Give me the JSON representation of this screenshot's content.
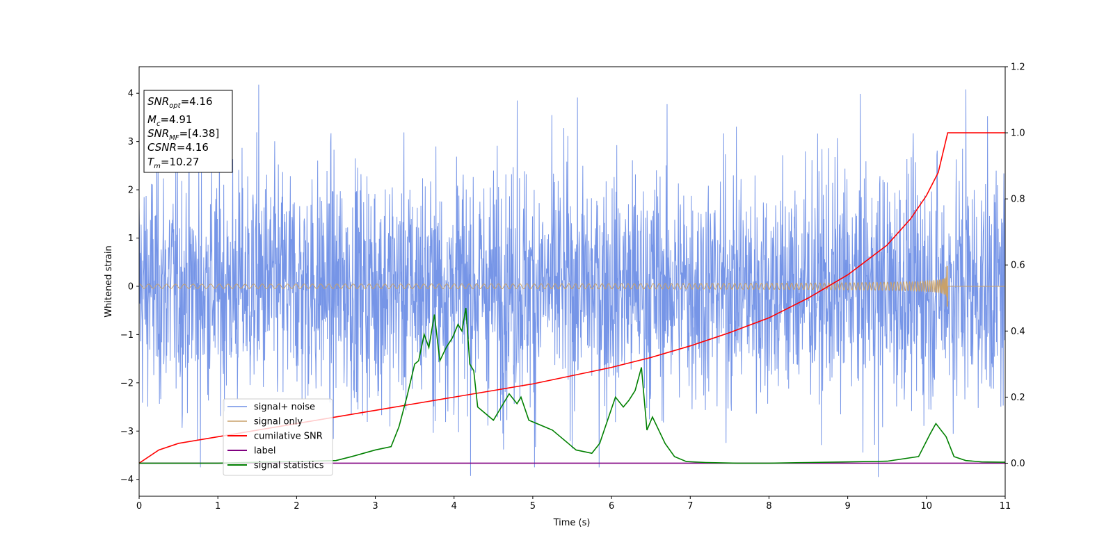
{
  "chart_data": {
    "type": "line",
    "xlabel": "Time (s)",
    "ylabel": "Whitened strain",
    "xlim": [
      0,
      11
    ],
    "ylim": [
      -4.35,
      4.55
    ],
    "y2lim": [
      -0.1,
      1.2
    ],
    "x_ticks": [
      0,
      1,
      2,
      3,
      4,
      5,
      6,
      7,
      8,
      9,
      10,
      11
    ],
    "y_ticks": [
      -4,
      -3,
      -2,
      -1,
      0,
      1,
      2,
      3,
      4
    ],
    "y2_ticks": [
      0.0,
      0.2,
      0.4,
      0.6,
      0.8,
      1.0,
      1.2
    ],
    "grid": false,
    "legend_position": "lower-left",
    "colors": {
      "noise": "#6f8fe6",
      "signal": "#c8a16a",
      "cumulative": "#ff0000",
      "label": "#800080",
      "statistics": "#008000"
    },
    "annotation_box": {
      "position": "top-left",
      "lines": [
        {
          "var": "SNR",
          "sub": "opt",
          "value": "=4.16"
        },
        {
          "var": "M",
          "sub": "c",
          "value": "=4.91"
        },
        {
          "var": "SNR",
          "sub": "MF",
          "value": "=[4.38]"
        },
        {
          "var": "CSNR",
          "sub": "",
          "value": "=4.16"
        },
        {
          "var": "T",
          "sub": "m",
          "value": "=10.27"
        }
      ]
    },
    "series": [
      {
        "name": "signal+ noise",
        "axis": "left",
        "style": "noise band",
        "x_range": [
          0,
          11
        ],
        "typical_envelope": [
          -1.7,
          2.3
        ],
        "extremes": [
          -3.95,
          4.18
        ],
        "spikes": [
          {
            "x": 1.52,
            "y": 4.18
          },
          {
            "x": 10.5,
            "y": 4.08
          },
          {
            "x": 4.8,
            "y": 3.85
          },
          {
            "x": 0.78,
            "y": -3.75
          },
          {
            "x": 5.02,
            "y": -3.75
          },
          {
            "x": 9.39,
            "y": -3.95
          }
        ]
      },
      {
        "name": "signal only",
        "axis": "left",
        "style": "chirp",
        "x_range": [
          0,
          11
        ],
        "merger_time": 10.27,
        "peak_amplitude": 0.42
      },
      {
        "name": "cumilative SNR",
        "axis": "right",
        "x": [
          0,
          0.25,
          0.5,
          1,
          1.5,
          2,
          2.5,
          3,
          3.5,
          4,
          4.5,
          5,
          5.5,
          6,
          6.5,
          7,
          7.5,
          8,
          8.5,
          9,
          9.5,
          9.8,
          10,
          10.15,
          10.27,
          11
        ],
        "values": [
          0.0,
          0.04,
          0.06,
          0.08,
          0.1,
          0.12,
          0.14,
          0.16,
          0.18,
          0.2,
          0.22,
          0.24,
          0.265,
          0.29,
          0.32,
          0.355,
          0.395,
          0.44,
          0.5,
          0.57,
          0.66,
          0.74,
          0.81,
          0.88,
          1.0,
          1.0
        ]
      },
      {
        "name": "label",
        "axis": "right",
        "x": [
          0,
          11
        ],
        "values": [
          0,
          0
        ]
      },
      {
        "name": "signal statistics",
        "axis": "right",
        "x": [
          0,
          0.5,
          1,
          1.5,
          2,
          2.5,
          2.7,
          2.85,
          3,
          3.1,
          3.2,
          3.3,
          3.4,
          3.5,
          3.55,
          3.62,
          3.68,
          3.75,
          3.82,
          3.9,
          3.98,
          4.05,
          4.1,
          4.15,
          4.2,
          4.25,
          4.3,
          4.35,
          4.5,
          4.6,
          4.7,
          4.8,
          4.85,
          4.95,
          5.05,
          5.15,
          5.25,
          5.35,
          5.45,
          5.55,
          5.65,
          5.75,
          5.85,
          5.95,
          6.05,
          6.15,
          6.22,
          6.3,
          6.38,
          6.45,
          6.52,
          6.6,
          6.68,
          6.8,
          6.95,
          7.2,
          7.6,
          8.0,
          8.5,
          9.0,
          9.5,
          9.9,
          10.05,
          10.12,
          10.25,
          10.35,
          10.5,
          10.7,
          11
        ],
        "values": [
          0.0,
          0.0,
          0.0,
          0.003,
          0.005,
          0.008,
          0.02,
          0.03,
          0.04,
          0.045,
          0.05,
          0.11,
          0.2,
          0.3,
          0.31,
          0.39,
          0.35,
          0.45,
          0.31,
          0.35,
          0.38,
          0.42,
          0.4,
          0.47,
          0.3,
          0.28,
          0.17,
          0.16,
          0.13,
          0.17,
          0.21,
          0.18,
          0.2,
          0.13,
          0.12,
          0.11,
          0.1,
          0.08,
          0.06,
          0.04,
          0.035,
          0.03,
          0.06,
          0.13,
          0.2,
          0.17,
          0.19,
          0.22,
          0.29,
          0.1,
          0.14,
          0.1,
          0.06,
          0.02,
          0.005,
          0.002,
          0.0,
          0.0,
          0.002,
          0.004,
          0.006,
          0.02,
          0.09,
          0.12,
          0.08,
          0.02,
          0.008,
          0.004,
          0.003
        ]
      }
    ]
  }
}
